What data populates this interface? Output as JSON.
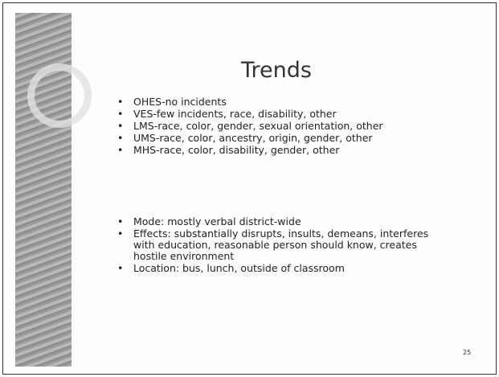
{
  "slide": {
    "title": "Trends",
    "groups": [
      {
        "items": [
          "OHES-no incidents",
          "VES-few incidents, race, disability, other",
          "LMS-race, color, gender, sexual orientation, other",
          "UMS-race, color, ancestry, origin, gender, other",
          "MHS-race, color, disability, gender, other"
        ]
      },
      {
        "items": [
          "Mode: mostly verbal district-wide",
          "Effects: substantially disrupts, insults, demeans, interferes with education, reasonable person should know, creates hostile environment",
          "Location: bus, lunch, outside of classroom"
        ]
      }
    ],
    "page_number": "25"
  }
}
